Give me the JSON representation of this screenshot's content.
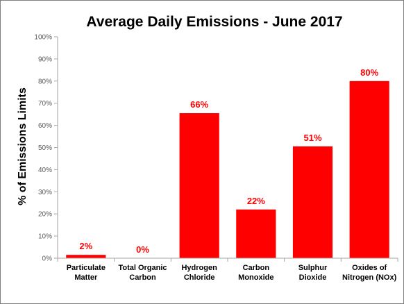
{
  "chart_data": {
    "type": "bar",
    "title": "Average Daily Emissions  - June 2017",
    "ylabel": "% of Emissions Limits",
    "xlabel": "",
    "ylim": [
      0,
      100
    ],
    "yticks": [
      "0%",
      "10%",
      "20%",
      "30%",
      "40%",
      "50%",
      "60%",
      "70%",
      "80%",
      "90%",
      "100%"
    ],
    "categories": [
      [
        "Particulate",
        "Matter"
      ],
      [
        "Total Organic",
        "Carbon"
      ],
      [
        "Hydrogen",
        "Chloride"
      ],
      [
        "Carbon",
        "Monoxide"
      ],
      [
        "Sulphur",
        "Dioxide"
      ],
      [
        "Oxides of",
        "Nitrogen (NOx)"
      ]
    ],
    "values": [
      1.5,
      0,
      65.5,
      22,
      50.5,
      80
    ],
    "data_labels": [
      "2%",
      "0%",
      "66%",
      "22%",
      "51%",
      "80%"
    ],
    "grid": false,
    "legend": "none",
    "bar_color": "#ff0000",
    "label_color": "#ff0000",
    "axis_color": "#a6a6a6"
  }
}
